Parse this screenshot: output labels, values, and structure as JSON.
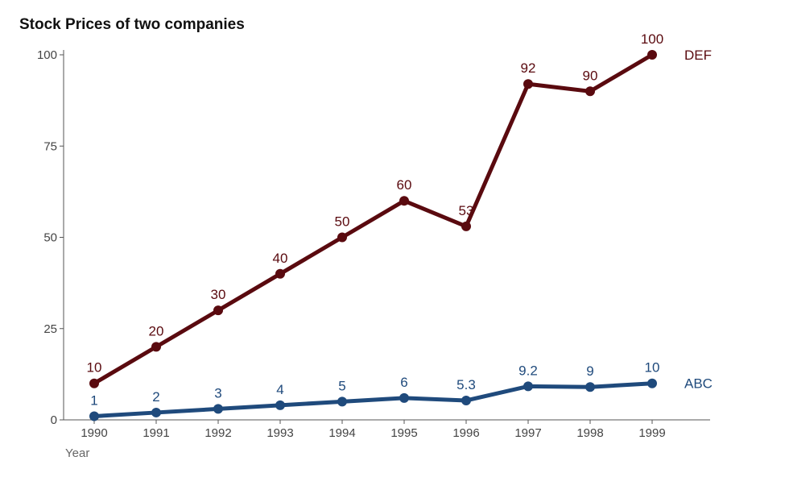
{
  "chart_data": {
    "type": "line",
    "title": "Stock Prices of two companies",
    "xlabel": "Year",
    "ylabel": "",
    "ylim": [
      0,
      100
    ],
    "yticks": [
      0,
      25,
      50,
      75,
      100
    ],
    "grid": false,
    "legend": "direct labels at line ends",
    "categories": [
      "1990",
      "1991",
      "1992",
      "1993",
      "1994",
      "1995",
      "1996",
      "1997",
      "1998",
      "1999"
    ],
    "series": [
      {
        "name": "DEF",
        "color": "#5a0a0f",
        "values": [
          10,
          20,
          30,
          40,
          50,
          60,
          53,
          92,
          90,
          100
        ],
        "labels": [
          "10",
          "20",
          "30",
          "40",
          "50",
          "60",
          "53",
          "92",
          "90",
          "100"
        ]
      },
      {
        "name": "ABC",
        "color": "#1f4a7c",
        "values": [
          1,
          2,
          3,
          4,
          5,
          6,
          5.3,
          9.2,
          9,
          10
        ],
        "labels": [
          "1",
          "2",
          "3",
          "4",
          "5",
          "6",
          "5.3",
          "9.2",
          "9",
          "10"
        ]
      }
    ]
  }
}
